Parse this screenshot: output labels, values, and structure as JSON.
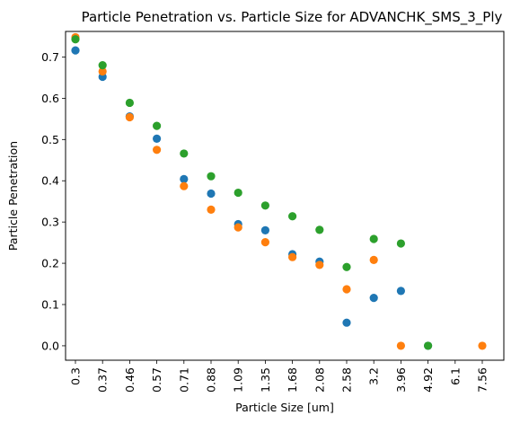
{
  "chart_data": {
    "type": "scatter",
    "title": "Particle Penetration vs. Particle Size for ADVANCHK_SMS_3_Ply",
    "xlabel": "Particle Size [um]",
    "ylabel": "Particle Penetration",
    "categories": [
      "0.3",
      "0.37",
      "0.46",
      "0.57",
      "0.71",
      "0.88",
      "1.09",
      "1.35",
      "1.68",
      "2.08",
      "2.58",
      "3.2",
      "3.96",
      "4.92",
      "6.1",
      "7.56"
    ],
    "y_ticks": [
      "0.0",
      "0.1",
      "0.2",
      "0.3",
      "0.4",
      "0.5",
      "0.6",
      "0.7"
    ],
    "ylim": [
      -0.035,
      0.762
    ],
    "grid": false,
    "legend": "none",
    "series": [
      {
        "color": "#1f77b4",
        "points": [
          {
            "x": "0.3",
            "y": 0.716
          },
          {
            "x": "0.37",
            "y": 0.652
          },
          {
            "x": "0.46",
            "y": 0.556
          },
          {
            "x": "0.57",
            "y": 0.502
          },
          {
            "x": "0.71",
            "y": 0.404
          },
          {
            "x": "0.88",
            "y": 0.369
          },
          {
            "x": "1.09",
            "y": 0.295
          },
          {
            "x": "1.35",
            "y": 0.28
          },
          {
            "x": "1.68",
            "y": 0.222
          },
          {
            "x": "2.08",
            "y": 0.204
          },
          {
            "x": "2.58",
            "y": 0.056
          },
          {
            "x": "3.2",
            "y": 0.116
          },
          {
            "x": "3.96",
            "y": 0.133
          },
          {
            "x": "4.92",
            "y": 0.0
          }
        ]
      },
      {
        "color": "#ff7f0e",
        "points": [
          {
            "x": "0.3",
            "y": 0.748
          },
          {
            "x": "0.37",
            "y": 0.665
          },
          {
            "x": "0.46",
            "y": 0.554
          },
          {
            "x": "0.57",
            "y": 0.475
          },
          {
            "x": "0.71",
            "y": 0.387
          },
          {
            "x": "0.88",
            "y": 0.33
          },
          {
            "x": "1.09",
            "y": 0.287
          },
          {
            "x": "1.35",
            "y": 0.251
          },
          {
            "x": "1.68",
            "y": 0.215
          },
          {
            "x": "2.08",
            "y": 0.196
          },
          {
            "x": "2.58",
            "y": 0.137
          },
          {
            "x": "3.2",
            "y": 0.208
          },
          {
            "x": "3.96",
            "y": 0.0
          },
          {
            "x": "7.56",
            "y": 0.0
          }
        ]
      },
      {
        "color": "#2ca02c",
        "points": [
          {
            "x": "0.3",
            "y": 0.743
          },
          {
            "x": "0.37",
            "y": 0.68
          },
          {
            "x": "0.46",
            "y": 0.589
          },
          {
            "x": "0.57",
            "y": 0.533
          },
          {
            "x": "0.71",
            "y": 0.466
          },
          {
            "x": "0.88",
            "y": 0.411
          },
          {
            "x": "1.09",
            "y": 0.371
          },
          {
            "x": "1.35",
            "y": 0.34
          },
          {
            "x": "1.68",
            "y": 0.314
          },
          {
            "x": "2.08",
            "y": 0.281
          },
          {
            "x": "2.58",
            "y": 0.191
          },
          {
            "x": "3.2",
            "y": 0.259
          },
          {
            "x": "3.96",
            "y": 0.248
          },
          {
            "x": "4.92",
            "y": 0.0
          }
        ]
      }
    ]
  }
}
